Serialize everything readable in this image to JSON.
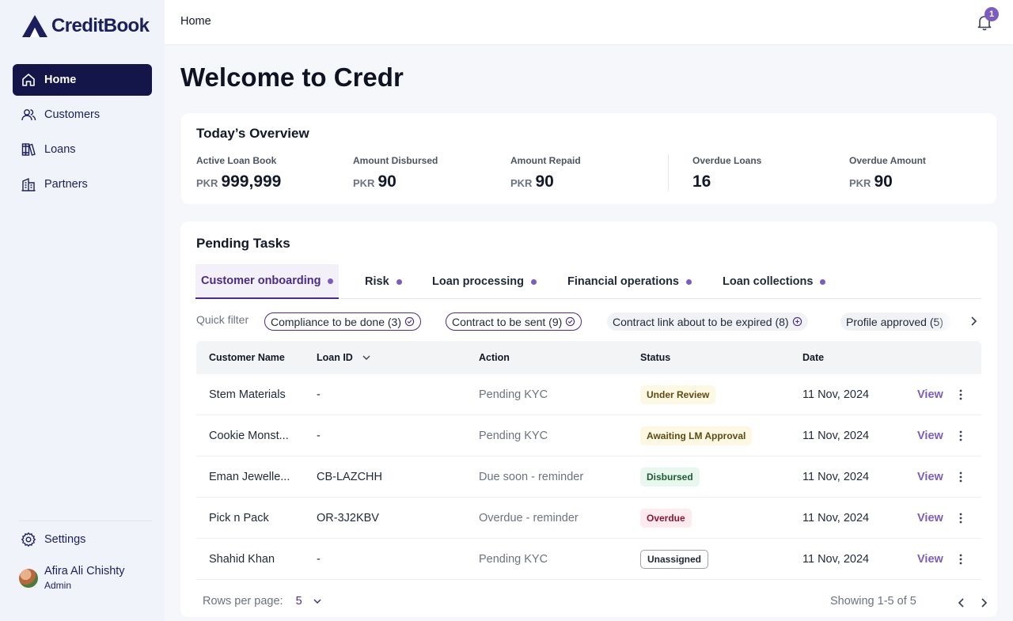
{
  "app": {
    "logo_text": "CreditBook"
  },
  "sidebar": {
    "items": [
      {
        "label": "Home",
        "icon": "home-icon",
        "active": true
      },
      {
        "label": "Customers",
        "icon": "users-icon"
      },
      {
        "label": "Loans",
        "icon": "books-icon"
      },
      {
        "label": "Partners",
        "icon": "building-icon"
      }
    ],
    "settings_label": "Settings",
    "user": {
      "name": "Afira Ali Chishty",
      "role": "Admin"
    }
  },
  "header": {
    "breadcrumb": "Home",
    "notification_count": "1"
  },
  "page": {
    "title": "Welcome to Credr"
  },
  "overview": {
    "title": "Today’s Overview",
    "stats": [
      {
        "label": "Active Loan Book",
        "currency": "PKR",
        "value": "999,999"
      },
      {
        "label": "Amount Disbursed",
        "currency": "PKR",
        "value": "90"
      },
      {
        "label": "Amount Repaid",
        "currency": "PKR",
        "value": "90"
      },
      {
        "label": "Overdue Loans",
        "currency": "",
        "value": "16"
      },
      {
        "label": "Overdue Amount",
        "currency": "PKR",
        "value": "90"
      }
    ]
  },
  "tasks": {
    "title": "Pending Tasks",
    "tabs": [
      {
        "label": "Customer onboarding",
        "active": true
      },
      {
        "label": "Risk"
      },
      {
        "label": "Loan processing"
      },
      {
        "label": "Financial operations"
      },
      {
        "label": "Loan collections"
      }
    ],
    "quick_filter_label": "Quick filter",
    "chips": [
      {
        "label": "Compliance to be done (3)",
        "selected": true
      },
      {
        "label": "Contract to be sent (9)",
        "selected": true
      },
      {
        "label": "Contract link about to be expired (8)",
        "selected": false
      },
      {
        "label": "Profile approved (5)",
        "selected": false
      }
    ],
    "columns": {
      "name": "Customer Name",
      "loan_id": "Loan ID",
      "action": "Action",
      "status": "Status",
      "date": "Date"
    },
    "rows": [
      {
        "name": "Stem Materials",
        "loan_id": "-",
        "action": "Pending KYC",
        "status": "Under Review",
        "date": "11 Nov, 2024",
        "view": "View"
      },
      {
        "name": "Cookie Monst...",
        "loan_id": "-",
        "action": "Pending KYC",
        "status": "Awaiting LM Approval",
        "date": "11 Nov, 2024",
        "view": "View"
      },
      {
        "name": "Eman Jewelle...",
        "loan_id": "CB-LAZCHH",
        "action": "Due soon - reminder",
        "status": "Disbursed",
        "date": "11 Nov, 2024",
        "view": "View"
      },
      {
        "name": "Pick n Pack",
        "loan_id": "OR-3J2KBV",
        "action": "Overdue - reminder",
        "status": "Overdue",
        "date": "11 Nov, 2024",
        "view": "View"
      },
      {
        "name": "Shahid Khan",
        "loan_id": "-",
        "action": "Pending KYC",
        "status": "Unassigned",
        "date": "11 Nov, 2024",
        "view": "View"
      }
    ],
    "pagination": {
      "rows_per_page_label": "Rows per page:",
      "rows_per_page": "5",
      "showing": "Showing 1-5 of 5"
    }
  },
  "colors": {
    "accent": "#7c5cbf",
    "nav_active": "#14164a",
    "brand": "#1b1f5e"
  }
}
